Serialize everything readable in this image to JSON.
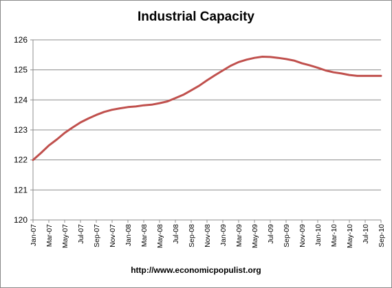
{
  "chart_data": {
    "type": "line",
    "title": "Industrial Capacity",
    "xlabel": "",
    "ylabel": "",
    "ylim": [
      120,
      126
    ],
    "yticks": [
      120,
      121,
      122,
      123,
      124,
      125,
      126
    ],
    "grid": true,
    "legend": "none",
    "line_color": "#c0504d",
    "x": [
      "Jan-07",
      "Feb-07",
      "Mar-07",
      "Apr-07",
      "May-07",
      "Jun-07",
      "Jul-07",
      "Aug-07",
      "Sep-07",
      "Oct-07",
      "Nov-07",
      "Dec-07",
      "Jan-08",
      "Feb-08",
      "Mar-08",
      "Apr-08",
      "May-08",
      "Jun-08",
      "Jul-08",
      "Aug-08",
      "Sep-08",
      "Oct-08",
      "Nov-08",
      "Dec-08",
      "Jan-09",
      "Feb-09",
      "Mar-09",
      "Apr-09",
      "May-09",
      "Jun-09",
      "Jul-09",
      "Aug-09",
      "Sep-09",
      "Oct-09",
      "Nov-09",
      "Dec-09",
      "Jan-10",
      "Feb-10",
      "Mar-10",
      "Apr-10",
      "May-10",
      "Jun-10",
      "Jul-10",
      "Aug-10",
      "Sep-10"
    ],
    "x_tick_labels": [
      "Jan-07",
      "Mar-07",
      "May-07",
      "Jul-07",
      "Sep-07",
      "Nov-07",
      "Jan-08",
      "Mar-08",
      "May-08",
      "Jul-08",
      "Sep-08",
      "Nov-08",
      "Jan-09",
      "Mar-09",
      "May-09",
      "Jul-09",
      "Sep-09",
      "Nov-09",
      "Jan-10",
      "Mar-10",
      "May-10",
      "Jul-10",
      "Sep-10"
    ],
    "series": [
      {
        "values": [
          122.0,
          122.23,
          122.48,
          122.68,
          122.9,
          123.08,
          123.25,
          123.38,
          123.5,
          123.6,
          123.67,
          123.72,
          123.76,
          123.78,
          123.82,
          123.84,
          123.89,
          123.95,
          124.06,
          124.17,
          124.32,
          124.47,
          124.65,
          124.82,
          124.98,
          125.14,
          125.26,
          125.34,
          125.4,
          125.44,
          125.43,
          125.4,
          125.36,
          125.31,
          125.22,
          125.15,
          125.07,
          124.98,
          124.92,
          124.88,
          124.83,
          124.8,
          124.8,
          124.8,
          124.8
        ]
      }
    ]
  },
  "footer": {
    "url": "http://www.economicpopulist.org"
  }
}
